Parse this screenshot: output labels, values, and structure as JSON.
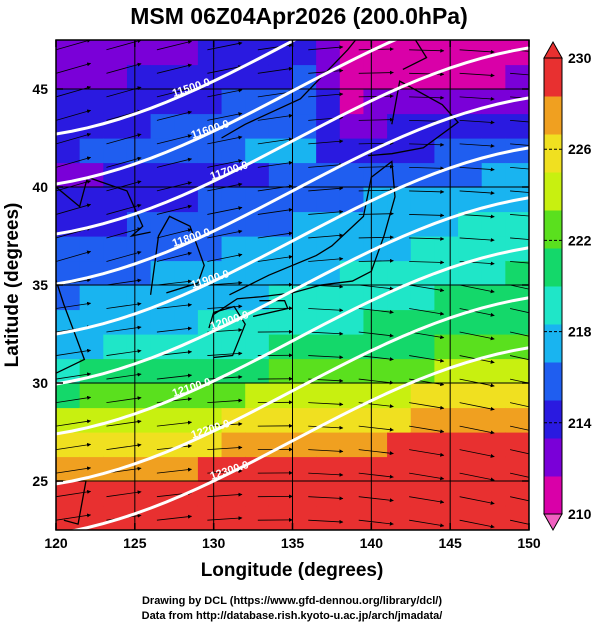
{
  "title": "MSM 06Z04Apr2026 (200.0hPa)",
  "xlabel": "Longitude (degrees)",
  "ylabel": "Latitude  (degrees)",
  "x_ticks": [
    "120",
    "125",
    "130",
    "135",
    "140",
    "145",
    "150"
  ],
  "y_ticks": [
    "25",
    "30",
    "35",
    "40",
    "45"
  ],
  "colorbar": {
    "ticks": [
      "210",
      "214",
      "218",
      "222",
      "226",
      "230"
    ],
    "range": [
      210,
      230
    ],
    "colors": [
      "#d900a8",
      "#7a00d8",
      "#2a1ae0",
      "#1f5ef0",
      "#19b4f0",
      "#1fe6c8",
      "#14d86a",
      "#5ae01e",
      "#c8f010",
      "#f0e020",
      "#f0a020",
      "#e83030"
    ]
  },
  "credits": {
    "line1": "Drawing by DCL (https://www.gfd-dennou.org/library/dcl/)",
    "line2": "Data from http://database.rish.kyoto-u.ac.jp/arch/jmadata/"
  },
  "contour_labels": [
    "11500.0",
    "11600.0",
    "11700.0",
    "11800.0",
    "11900.0",
    "12000.0",
    "12100.0",
    "12200.0",
    "12300.0"
  ],
  "chart_data": {
    "type": "heatmap",
    "title": "MSM 06Z04Apr2026 (200.0hPa)",
    "xlabel": "Longitude (degrees)",
    "ylabel": "Latitude  (degrees)",
    "xlim": [
      120,
      150
    ],
    "ylim": [
      22.5,
      47.5
    ],
    "colorbar_range": [
      210,
      230
    ],
    "contour_levels": [
      11500,
      11600,
      11700,
      11800,
      11900,
      12000,
      12100,
      12200,
      12300
    ],
    "fields": [
      "temperature (shaded)",
      "geopotential height (white contours)",
      "wind (streamlines)"
    ]
  }
}
